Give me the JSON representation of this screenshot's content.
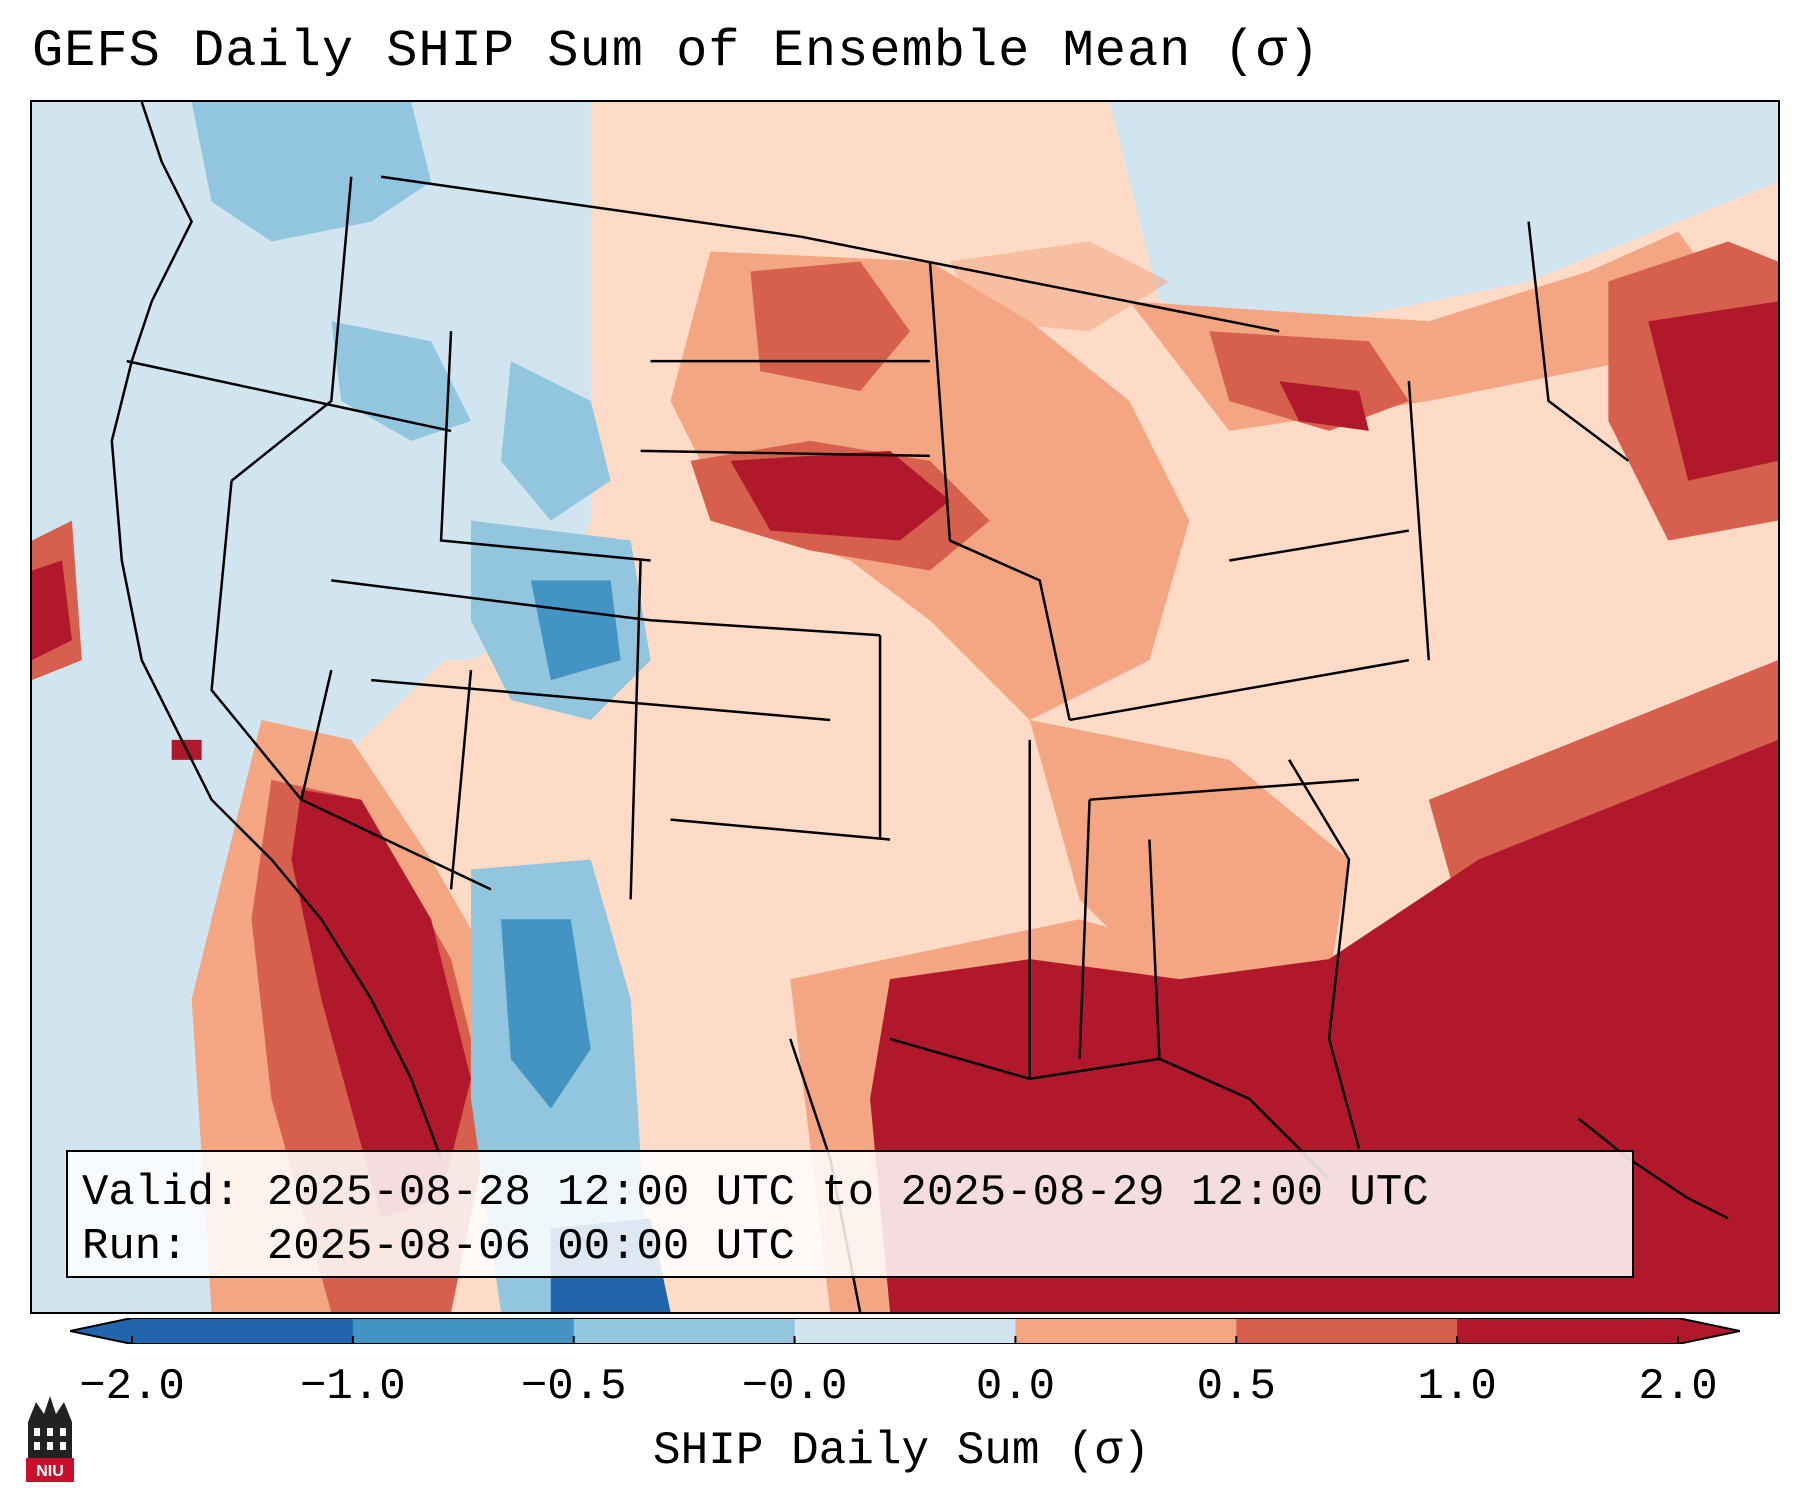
{
  "title": "GEFS Daily SHIP Sum of Ensemble Mean (σ)",
  "info": {
    "valid_label": "Valid:",
    "valid_value": "2025-08-28 12:00 UTC to 2025-08-29 12:00 UTC",
    "run_label": "Run:",
    "run_value": "2025-08-06 00:00 UTC"
  },
  "colorbar": {
    "label": "SHIP Daily Sum (σ)",
    "ticks": [
      "−2.0",
      "−1.0",
      "−0.5",
      "−0.0",
      "0.0",
      "0.5",
      "1.0",
      "2.0"
    ],
    "colors": [
      "#2166ac",
      "#4393c3",
      "#92c5de",
      "#d1e5f0",
      "#fddbc7",
      "#f4a582",
      "#d6604d",
      "#b2182b"
    ],
    "under_color": "#2166ac",
    "over_color": "#b2182b"
  },
  "logo": {
    "text": "NIU",
    "color": "#c8102e"
  }
}
